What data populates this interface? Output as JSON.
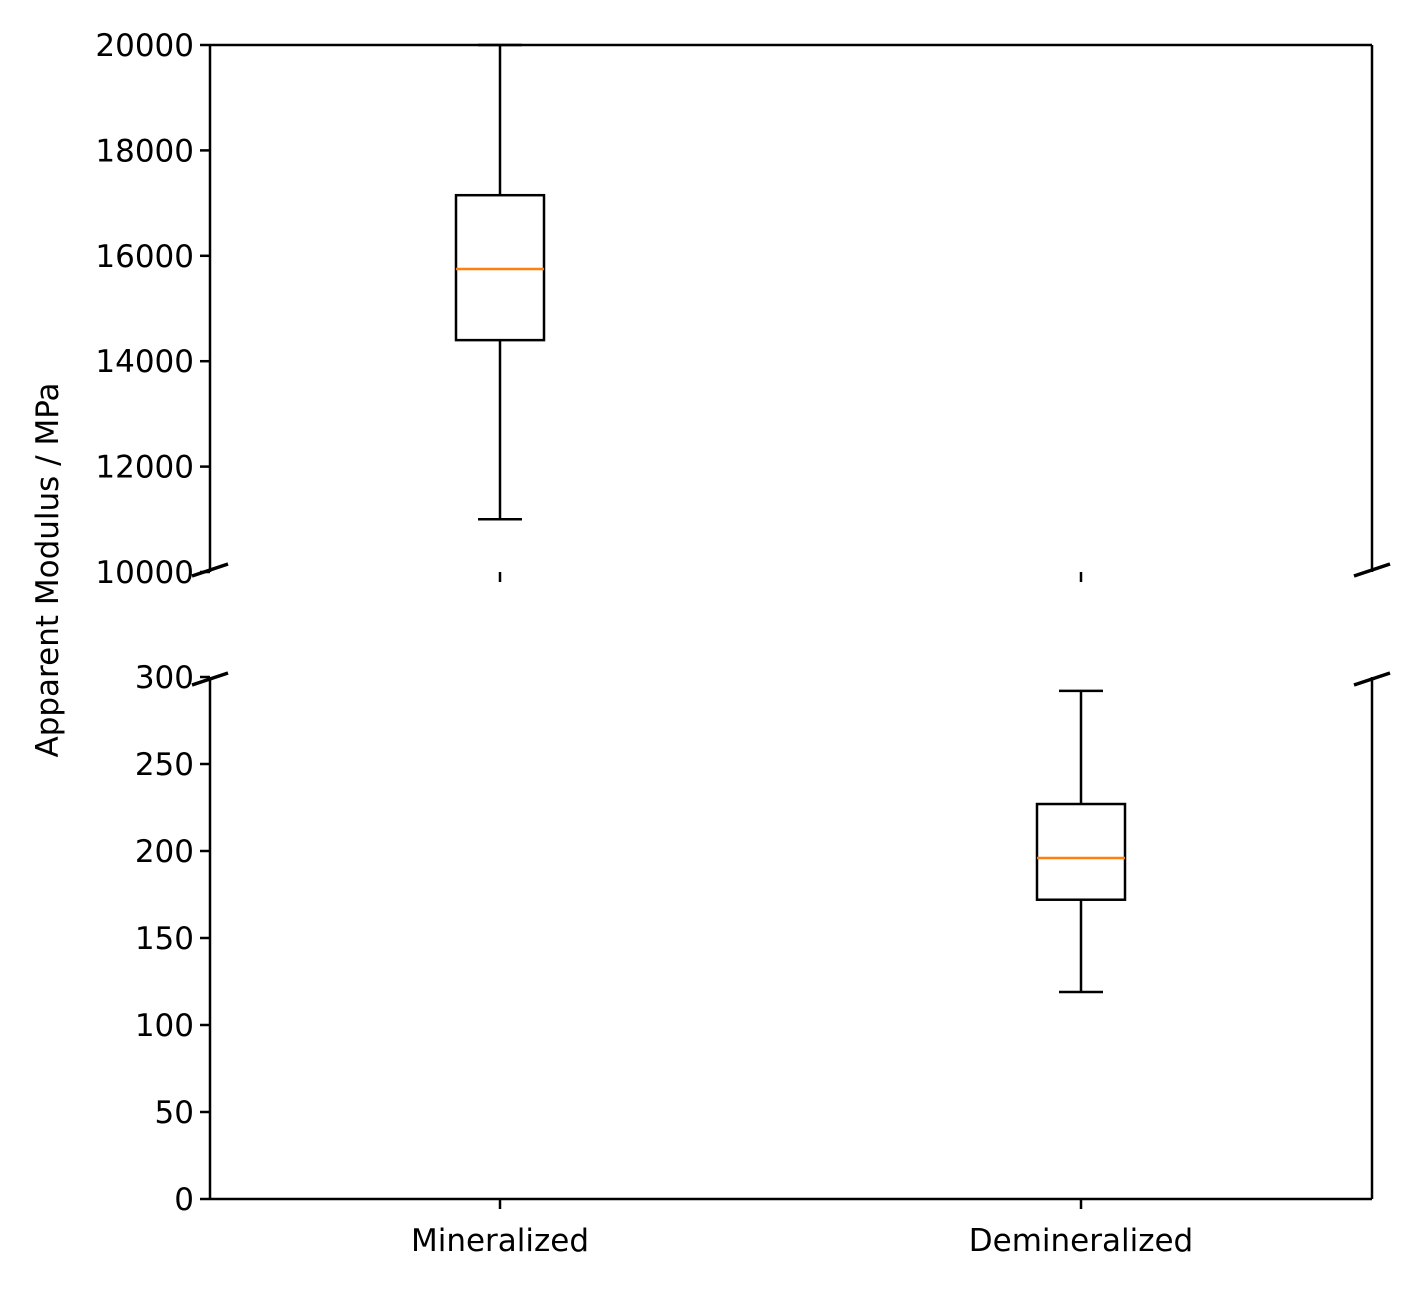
{
  "chart_data": {
    "type": "boxplot",
    "ylabel": "Apparent Modulus / MPa",
    "categories": [
      "Mineralized",
      "Demineralized"
    ],
    "colors": {
      "box": "#000000",
      "median": "#ff7f0e",
      "axes": "#000000"
    },
    "broken_axis": true,
    "upper_panel": {
      "ylim": [
        10000,
        20000
      ],
      "yticks": [
        10000,
        12000,
        14000,
        16000,
        18000,
        20000
      ],
      "ytick_labels": [
        "10000",
        "12000",
        "14000",
        "16000",
        "18000",
        "20000"
      ]
    },
    "lower_panel": {
      "ylim": [
        0,
        300
      ],
      "yticks": [
        0,
        50,
        100,
        150,
        200,
        250,
        300
      ],
      "ytick_labels": [
        "0",
        "50",
        "100",
        "150",
        "200",
        "250",
        "300"
      ]
    },
    "boxes": [
      {
        "category": "Mineralized",
        "whisker_low": 11000,
        "q1": 14400,
        "median": 15750,
        "q3": 17150,
        "whisker_high": 20000
      },
      {
        "category": "Demineralized",
        "whisker_low": 119,
        "q1": 172,
        "median": 196,
        "q3": 227,
        "whisker_high": 292
      }
    ]
  }
}
